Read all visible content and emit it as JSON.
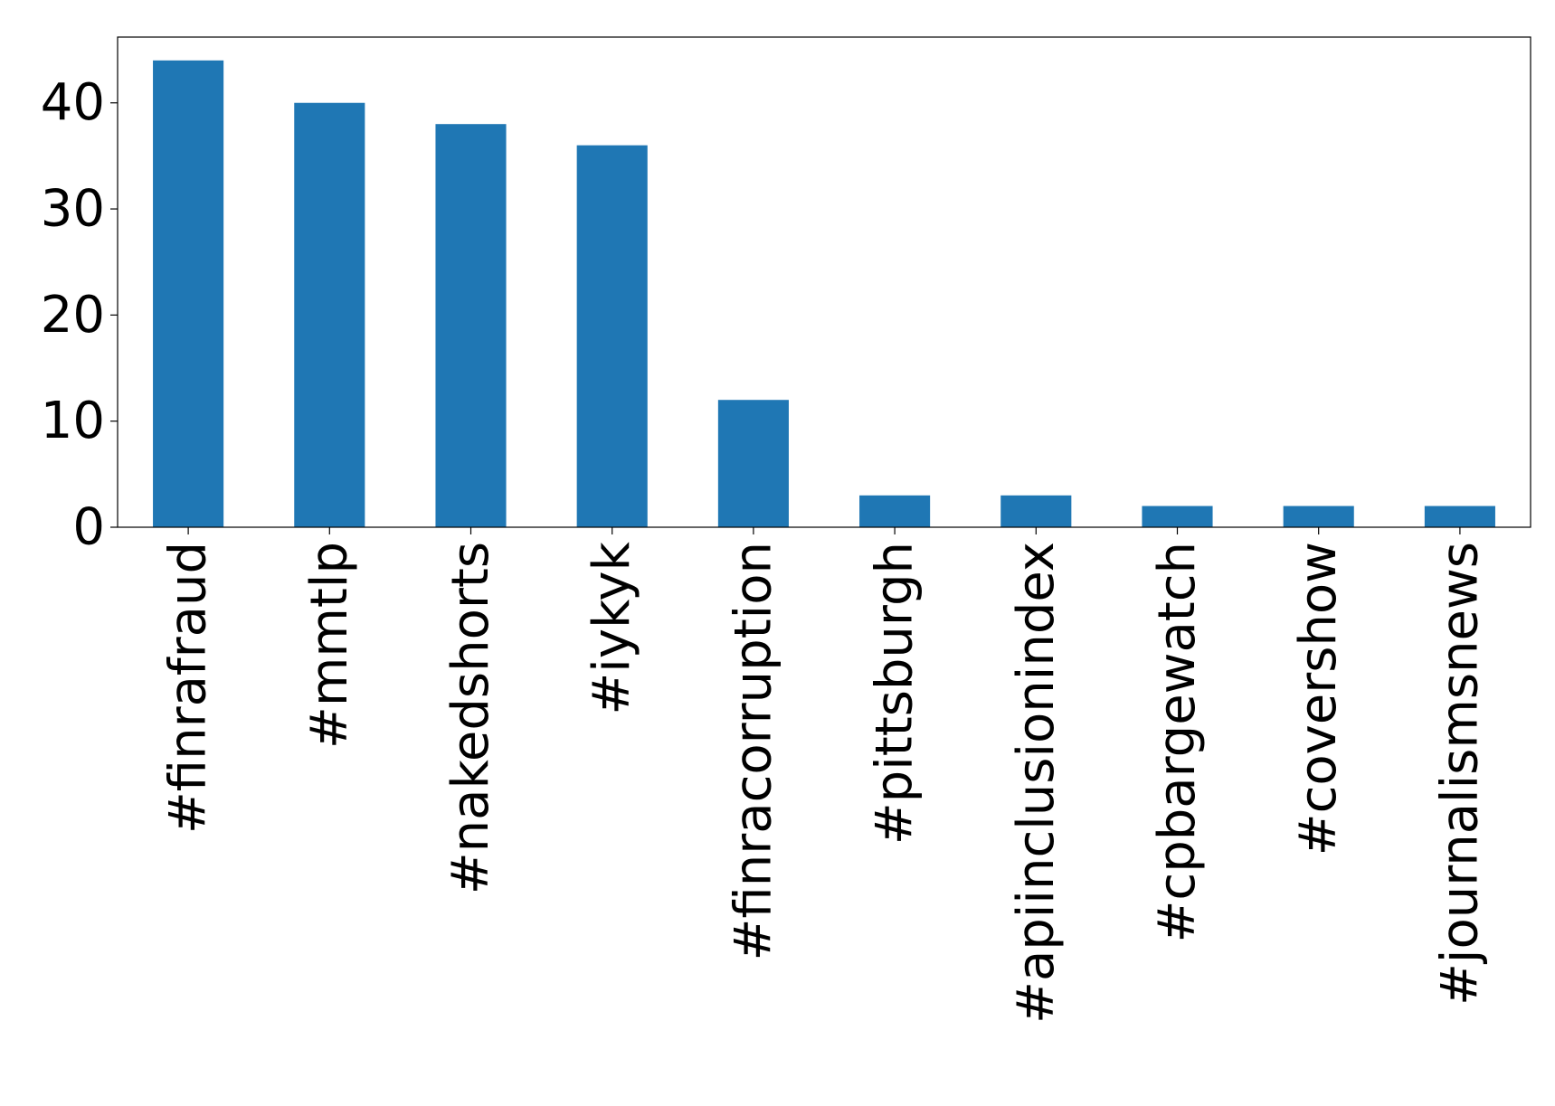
{
  "chart_data": {
    "type": "bar",
    "categories": [
      "#finrafraud",
      "#mmtlp",
      "#nakedshorts",
      "#iykyk",
      "#finracorruption",
      "#pittsburgh",
      "#apiinclusionindex",
      "#cpbargewatch",
      "#covershow",
      "#journalismsnews"
    ],
    "values": [
      44,
      40,
      38,
      36,
      12,
      3,
      3,
      2,
      2,
      2
    ],
    "title": "",
    "xlabel": "",
    "ylabel": "",
    "ylim": [
      0,
      46.2
    ],
    "yticks": [
      0,
      10,
      20,
      30,
      40
    ],
    "grid": false,
    "legend": "none",
    "bar_color": "#1f77b4"
  }
}
